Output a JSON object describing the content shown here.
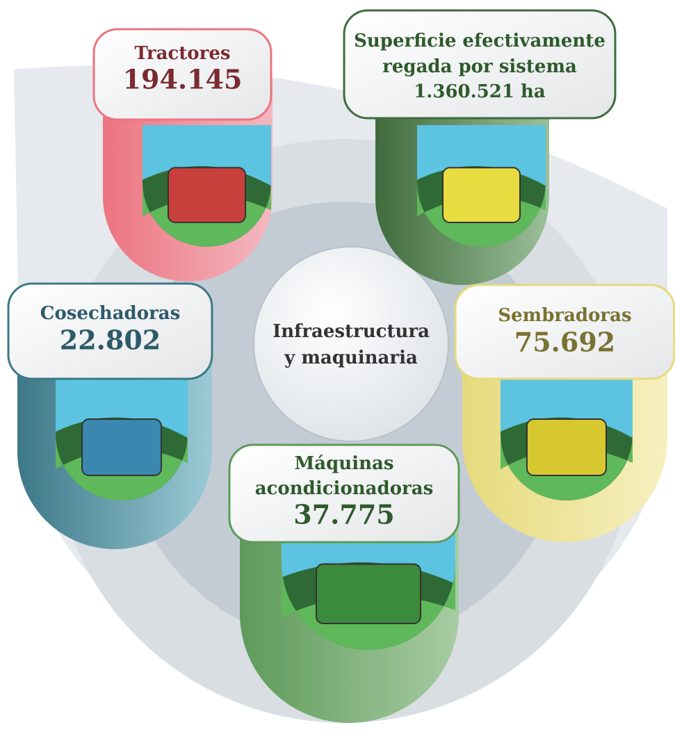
{
  "center_label": [
    "Infraestructura",
    "y maquinaria"
  ],
  "items": [
    {
      "lines": [
        "Tractores"
      ],
      "value": "194.145"
    },
    {
      "lines": [
        "Superficie efectivamente",
        "regada por sistema"
      ],
      "value": "1.360.521 ha"
    },
    {
      "lines": [
        "Cosechadoras"
      ],
      "value": "22.802"
    },
    {
      "lines": [
        "Sembradoras"
      ],
      "value": "75.692"
    },
    {
      "lines": [
        "Máquinas",
        "acondicionadoras"
      ],
      "value": "37.775"
    }
  ]
}
